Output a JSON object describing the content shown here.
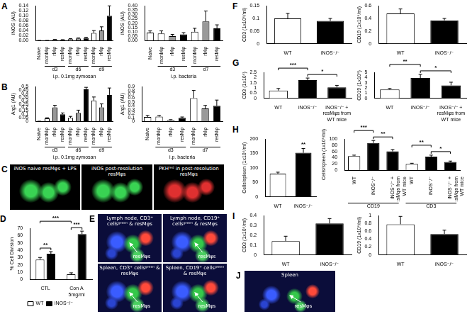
{
  "chart_data": [
    {
      "panel": "A",
      "type": "bar",
      "y_label": "iNOS (AU)",
      "categories": [
        "Naive",
        "monMφ",
        "rMφ",
        "resMφ",
        "monMφ",
        "rMφ",
        "resMφ",
        "monMφ",
        "rMφ",
        "resMφ"
      ],
      "values": [
        0,
        0,
        0.003,
        0.002,
        0.005,
        0.008,
        0.01,
        0.03,
        0.04,
        0.1
      ],
      "errors": [
        0,
        0,
        0.001,
        0.001,
        0.002,
        0.002,
        0.003,
        0.01,
        0.015,
        0.04
      ],
      "colors": [
        "#ffffff",
        "#ffffff",
        "#999999",
        "#000000",
        "#ffffff",
        "#999999",
        "#000000",
        "#ffffff",
        "#999999",
        "#000000"
      ],
      "groups": [
        {
          "label": "d3",
          "from": 1,
          "to": 3
        },
        {
          "label": "d6",
          "from": 4,
          "to": 6
        },
        {
          "label": "d9",
          "from": 7,
          "to": 9
        }
      ],
      "x_title": "i.p. 0.1mg zymosan",
      "ylim": [
        0,
        0.14
      ],
      "yticks": [
        {
          "value": 0,
          "label": "0.00"
        },
        0.02,
        0.04,
        0.06,
        0.08,
        {
          "value": 0.1,
          "label": "0.10"
        },
        0.12,
        0.14
      ],
      "grid": false
    },
    {
      "panel": "A",
      "type": "bar",
      "y_label": "iNOS (AU)",
      "categories": [
        "Naive",
        "monMφ",
        "rMφ",
        "resMφ",
        "monMφ",
        "rMφ",
        "resMφ"
      ],
      "values": [
        0.09,
        0.08,
        0.05,
        0.07,
        0.1,
        0.22,
        0.14
      ],
      "errors": [
        0.02,
        0.03,
        0.02,
        0.02,
        0.04,
        0.12,
        0.04
      ],
      "colors": [
        "#ffffff",
        "#ffffff",
        "#999999",
        "#000000",
        "#ffffff",
        "#999999",
        "#000000"
      ],
      "groups": [
        {
          "label": "d3",
          "from": 1,
          "to": 3
        },
        {
          "label": "d7",
          "from": 4,
          "to": 6
        }
      ],
      "x_title": "i.p. bacteria",
      "ylim": [
        0,
        0.4
      ],
      "yticks": [
        {
          "value": 0,
          "label": "0.00"
        },
        0.05,
        {
          "value": 0.1,
          "label": "0.10"
        },
        0.15,
        {
          "value": 0.2,
          "label": "0.20"
        },
        0.25,
        {
          "value": 0.3,
          "label": "0.30"
        },
        0.35,
        {
          "value": 0.4,
          "label": "0.40"
        }
      ],
      "grid": false
    },
    {
      "panel": "B",
      "type": "bar",
      "y_label": "Arg1 (AU)",
      "categories": [
        "Naive",
        "monMφ",
        "rMφ",
        "resMφ",
        "monMφ",
        "rMφ",
        "resMφ",
        "monMφ",
        "rMφ",
        "resMφ"
      ],
      "values": [
        0,
        0.04,
        0.2,
        0.1,
        0.05,
        0.12,
        0.46,
        0.3,
        0.2,
        0.38
      ],
      "errors": [
        0,
        0.01,
        0.03,
        0.02,
        0.02,
        0.04,
        0.03,
        0.05,
        0.05,
        0.1
      ],
      "colors": [
        "#ffffff",
        "#ffffff",
        "#999999",
        "#000000",
        "#ffffff",
        "#999999",
        "#000000",
        "#ffffff",
        "#999999",
        "#000000"
      ],
      "groups": [
        {
          "label": "d3",
          "from": 1,
          "to": 3
        },
        {
          "label": "d6",
          "from": 4,
          "to": 6
        },
        {
          "label": "d9",
          "from": 7,
          "to": 9
        }
      ],
      "x_title": "i.p. 0.1mg zymosan",
      "ylim": [
        0,
        0.5
      ],
      "yticks": [
        0,
        0.05,
        0.1,
        0.15,
        0.2,
        0.25,
        0.3,
        0.35,
        0.4,
        0.45,
        0.5
      ],
      "grid": false
    },
    {
      "panel": "B",
      "type": "bar",
      "y_label": "Arg1 (AU)",
      "categories": [
        "Naive",
        "monMφ",
        "rMφ",
        "resMφ",
        "monMφ",
        "rMφ",
        "resMφ"
      ],
      "values": [
        0.11,
        0.12,
        0.03,
        0.09,
        0.6,
        0.33,
        0.4
      ],
      "errors": [
        0.04,
        0.03,
        0.01,
        0.02,
        0.2,
        0.08,
        0.15
      ],
      "colors": [
        "#ffffff",
        "#ffffff",
        "#999999",
        "#000000",
        "#ffffff",
        "#999999",
        "#000000"
      ],
      "groups": [
        {
          "label": "d3",
          "from": 1,
          "to": 3
        },
        {
          "label": "d7",
          "from": 4,
          "to": 6
        }
      ],
      "x_title": "i.p. bacteria",
      "ylim": [
        0,
        0.9
      ],
      "yticks": [
        0,
        0.1,
        0.2,
        0.3,
        0.4,
        0.5,
        0.6,
        0.7,
        0.8,
        0.9
      ],
      "grid": false
    },
    {
      "panel": "D",
      "type": "bar",
      "y_label": "% Cell Division",
      "categories": [
        "CTL",
        "Con A 5mg/ml"
      ],
      "series": [
        {
          "name": "WT",
          "color": "#ffffff",
          "values": [
            27,
            7
          ],
          "errors": [
            3,
            2
          ]
        },
        {
          "name": "iNOS⁻/⁻",
          "color": "#000000",
          "values": [
            35,
            62
          ],
          "errors": [
            3,
            4
          ]
        }
      ],
      "annotations": [
        {
          "text": "**",
          "from": [
            0,
            0
          ],
          "to": [
            0,
            1
          ]
        },
        {
          "text": "***",
          "from": [
            1,
            0
          ],
          "to": [
            1,
            1
          ]
        },
        {
          "text": "***",
          "from": [
            0,
            0
          ],
          "to": [
            1,
            0
          ]
        }
      ],
      "legend": "bottom",
      "ylim": [
        0,
        70
      ],
      "yticks": [
        0,
        10,
        20,
        30,
        40,
        50,
        60,
        70
      ],
      "grid": false
    },
    {
      "panel": "F",
      "type": "bar",
      "y_label": "CD3 (1x10⁶/ml)",
      "categories": [
        "WT",
        "iNOS⁻/⁻"
      ],
      "values": [
        0.1,
        0.09
      ],
      "errors": [
        0.02,
        0.01
      ],
      "colors": [
        "#ffffff",
        "#000000"
      ],
      "ylim": [
        0,
        0.15
      ],
      "yticks": [
        0,
        0.05,
        0.1,
        0.15
      ],
      "grid": false
    },
    {
      "panel": "F",
      "type": "bar",
      "y_label": "CD19 (1x10⁶/ml)",
      "categories": [
        "WT",
        "iNOS⁻/⁻"
      ],
      "values": [
        0.48,
        0.37
      ],
      "errors": [
        0.07,
        0.03
      ],
      "colors": [
        "#ffffff",
        "#000000"
      ],
      "ylim": [
        0,
        0.6
      ],
      "yticks": [
        0,
        0.2,
        0.4,
        0.6
      ],
      "grid": false
    },
    {
      "panel": "G",
      "type": "bar",
      "y_label": "CD3 (1x10⁶)",
      "categories": [
        "WT",
        "iNOS⁻/⁻",
        "iNOS⁻/⁻ + resMφs from WT mice"
      ],
      "values": [
        0.75,
        1.75,
        1.05
      ],
      "errors": [
        0.2,
        0.2,
        0.2
      ],
      "colors": [
        "#ffffff",
        "#000000",
        "#000000"
      ],
      "annotations": [
        {
          "text": "*",
          "from": 1,
          "to": 2
        },
        {
          "text": "***",
          "from": 0,
          "to": 1
        }
      ],
      "ylim": [
        0,
        2.5
      ],
      "yticks": [
        0,
        0.5,
        1,
        1.5,
        2,
        2.5
      ],
      "grid": false
    },
    {
      "panel": "G",
      "type": "bar",
      "y_label": "CD19 (1x10⁶)",
      "categories": [
        "WT",
        "iNOS⁻/⁻",
        "iNOS⁻/⁻ + resMφs from WT mice"
      ],
      "values": [
        1.7,
        3.9,
        2.5
      ],
      "errors": [
        0.2,
        0.7,
        0.6
      ],
      "colors": [
        "#ffffff",
        "#000000",
        "#000000"
      ],
      "annotations": [
        {
          "text": "*",
          "from": 1,
          "to": 2
        },
        {
          "text": "**",
          "from": 0,
          "to": 1
        }
      ],
      "ylim": [
        0,
        5
      ],
      "yticks": [
        0,
        1,
        2,
        3,
        4,
        5
      ],
      "grid": false
    },
    {
      "panel": "H",
      "type": "bar",
      "y_label": "Cells/spleen (1x10⁶/ml)",
      "categories": [
        "WT",
        "iNOS⁻/⁻"
      ],
      "values": [
        80,
        152
      ],
      "errors": [
        5,
        15
      ],
      "colors": [
        "#ffffff",
        "#000000"
      ],
      "annotations": [
        {
          "text": "**",
          "on": 1
        }
      ],
      "ylim": [
        0,
        200
      ],
      "yticks": [
        0,
        50,
        100,
        150,
        200
      ],
      "grid": false
    },
    {
      "panel": "H",
      "type": "bar",
      "y_label": "Cells/spleen (1x10⁶/ml)",
      "categories": [
        "WT",
        "iNOS⁻/⁻",
        "iNOS⁻/⁻ + resMφs from WT mice",
        "WT",
        "iNOS⁻/⁻",
        "iNOS⁻/⁻ + resMφs from WT mice"
      ],
      "values": [
        45,
        87,
        60,
        20,
        43,
        26
      ],
      "errors": [
        3,
        8,
        6,
        2,
        5,
        3
      ],
      "colors": [
        "#ffffff",
        "#000000",
        "#000000",
        "#ffffff",
        "#000000",
        "#000000"
      ],
      "groups": [
        {
          "label": "CD19",
          "from": 0,
          "to": 2
        },
        {
          "label": "CD3",
          "from": 3,
          "to": 5
        }
      ],
      "annotations": [
        {
          "text": "**",
          "from": 1,
          "to": 2
        },
        {
          "text": "***",
          "from": 0,
          "to": 1
        },
        {
          "text": "*",
          "from": 4,
          "to": 5
        },
        {
          "text": "**",
          "from": 3,
          "to": 4
        }
      ],
      "ylim": [
        0,
        100
      ],
      "yticks": [
        0,
        20,
        40,
        60,
        80,
        100
      ],
      "grid": false
    },
    {
      "panel": "I",
      "type": "bar",
      "y_label": "CD3 (1x10⁶/ml)",
      "categories": [
        "WT",
        "iNOS⁻/⁻"
      ],
      "values": [
        0.14,
        0.32
      ],
      "errors": [
        0.05,
        0.05
      ],
      "colors": [
        "#ffffff",
        "#000000"
      ],
      "ylim": [
        0,
        0.4
      ],
      "yticks": [
        0,
        0.1,
        0.2,
        0.3,
        0.4
      ],
      "grid": false
    },
    {
      "panel": "I",
      "type": "bar",
      "y_label": "CD19 (1x10⁶/ml)",
      "categories": [
        "WT",
        "iNOS⁻/⁻"
      ],
      "values": [
        0.78,
        0.53
      ],
      "errors": [
        0.2,
        0.1
      ],
      "colors": [
        "#ffffff",
        "#000000"
      ],
      "ylim": [
        0,
        1
      ],
      "yticks": [
        0,
        0.2,
        0.4,
        0.6,
        0.8,
        1
      ],
      "grid": false
    }
  ],
  "image_panels": [
    {
      "panel": "C",
      "images": [
        {
          "caption": "iNOS naive resMφs + LPS"
        },
        {
          "caption": "iNOS post-resolution resMφs"
        },
        {
          "caption": "PKHʳᵉᵈ in post-resolution resMφs"
        }
      ]
    },
    {
      "panel": "E",
      "images": [
        {
          "caption": "Lymph node, CD3⁺ cellsᵍʳᵉᵉⁿ & resMφs",
          "pointer": "resMφs"
        },
        {
          "caption": "Lymph node, CD19⁺ cellsᵍʳᵉᵉⁿ & resMφs",
          "pointer": "resMφs"
        },
        {
          "caption": "Spleen, CD3⁺ cellsᵍʳᵉᵉⁿ & resMφs",
          "pointer": "resMφs"
        },
        {
          "caption": "Spleen, CD19⁺ cellsᵍʳᵉᵉⁿ & resMφs",
          "pointer": "resMφs"
        }
      ]
    },
    {
      "panel": "J",
      "images": [
        {
          "caption": "Spleen",
          "pointer": "resMφs"
        }
      ]
    }
  ]
}
